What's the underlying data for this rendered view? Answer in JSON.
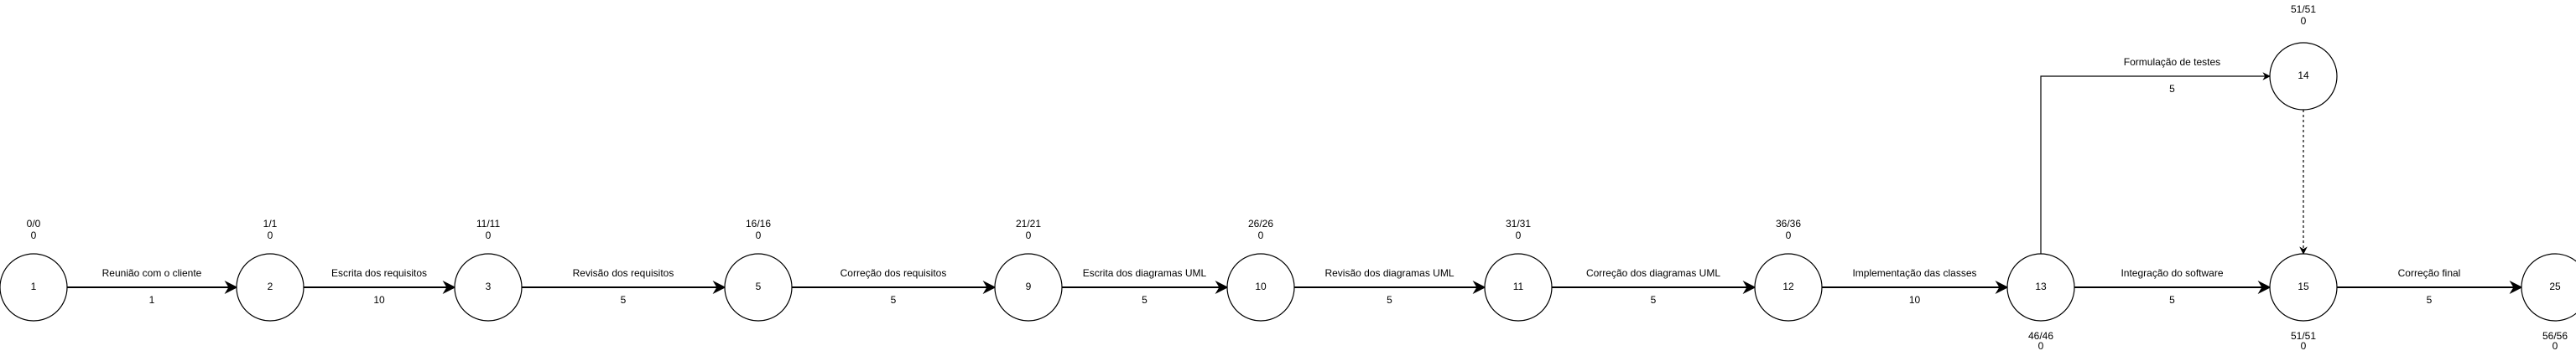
{
  "nodes": [
    {
      "id": "1",
      "label": "1",
      "times": "0/0",
      "slack": "0"
    },
    {
      "id": "2",
      "label": "2",
      "times": "1/1",
      "slack": "0"
    },
    {
      "id": "3",
      "label": "3",
      "times": "11/11",
      "slack": "0"
    },
    {
      "id": "5",
      "label": "5",
      "times": "16/16",
      "slack": "0"
    },
    {
      "id": "9",
      "label": "9",
      "times": "21/21",
      "slack": "0"
    },
    {
      "id": "10",
      "label": "10",
      "times": "26/26",
      "slack": "0"
    },
    {
      "id": "11",
      "label": "11",
      "times": "31/31",
      "slack": "0"
    },
    {
      "id": "12",
      "label": "12",
      "times": "36/36",
      "slack": "0"
    },
    {
      "id": "13",
      "label": "13",
      "times": "46/46",
      "slack": "0"
    },
    {
      "id": "14",
      "label": "14",
      "times": "51/51",
      "slack": "0"
    },
    {
      "id": "15",
      "label": "15",
      "times": "51/51",
      "slack": "0"
    },
    {
      "id": "25",
      "label": "25",
      "times": "56/56",
      "slack": "0"
    }
  ],
  "edges": [
    {
      "from": "1",
      "to": "2",
      "activity": "Reunião com o cliente",
      "duration": "1"
    },
    {
      "from": "2",
      "to": "3",
      "activity": "Escrita dos requisitos",
      "duration": "10"
    },
    {
      "from": "3",
      "to": "5",
      "activity": "Revisão dos requisitos",
      "duration": "5"
    },
    {
      "from": "5",
      "to": "9",
      "activity": "Correção dos requisitos",
      "duration": "5"
    },
    {
      "from": "9",
      "to": "10",
      "activity": "Escrita dos diagramas UML",
      "duration": "5"
    },
    {
      "from": "10",
      "to": "11",
      "activity": "Revisão dos diagramas UML",
      "duration": "5"
    },
    {
      "from": "11",
      "to": "12",
      "activity": "Correção dos diagramas UML",
      "duration": "5"
    },
    {
      "from": "12",
      "to": "13",
      "activity": "Implementação das classes",
      "duration": "10"
    },
    {
      "from": "13",
      "to": "15",
      "activity": "Integração do software",
      "duration": "5"
    },
    {
      "from": "15",
      "to": "25",
      "activity": "Correção final",
      "duration": "5"
    },
    {
      "from": "13",
      "to": "14",
      "activity": "Formulação de testes",
      "duration": "5"
    },
    {
      "from": "14",
      "to": "15",
      "activity": "",
      "duration": "",
      "dashed": true
    }
  ]
}
